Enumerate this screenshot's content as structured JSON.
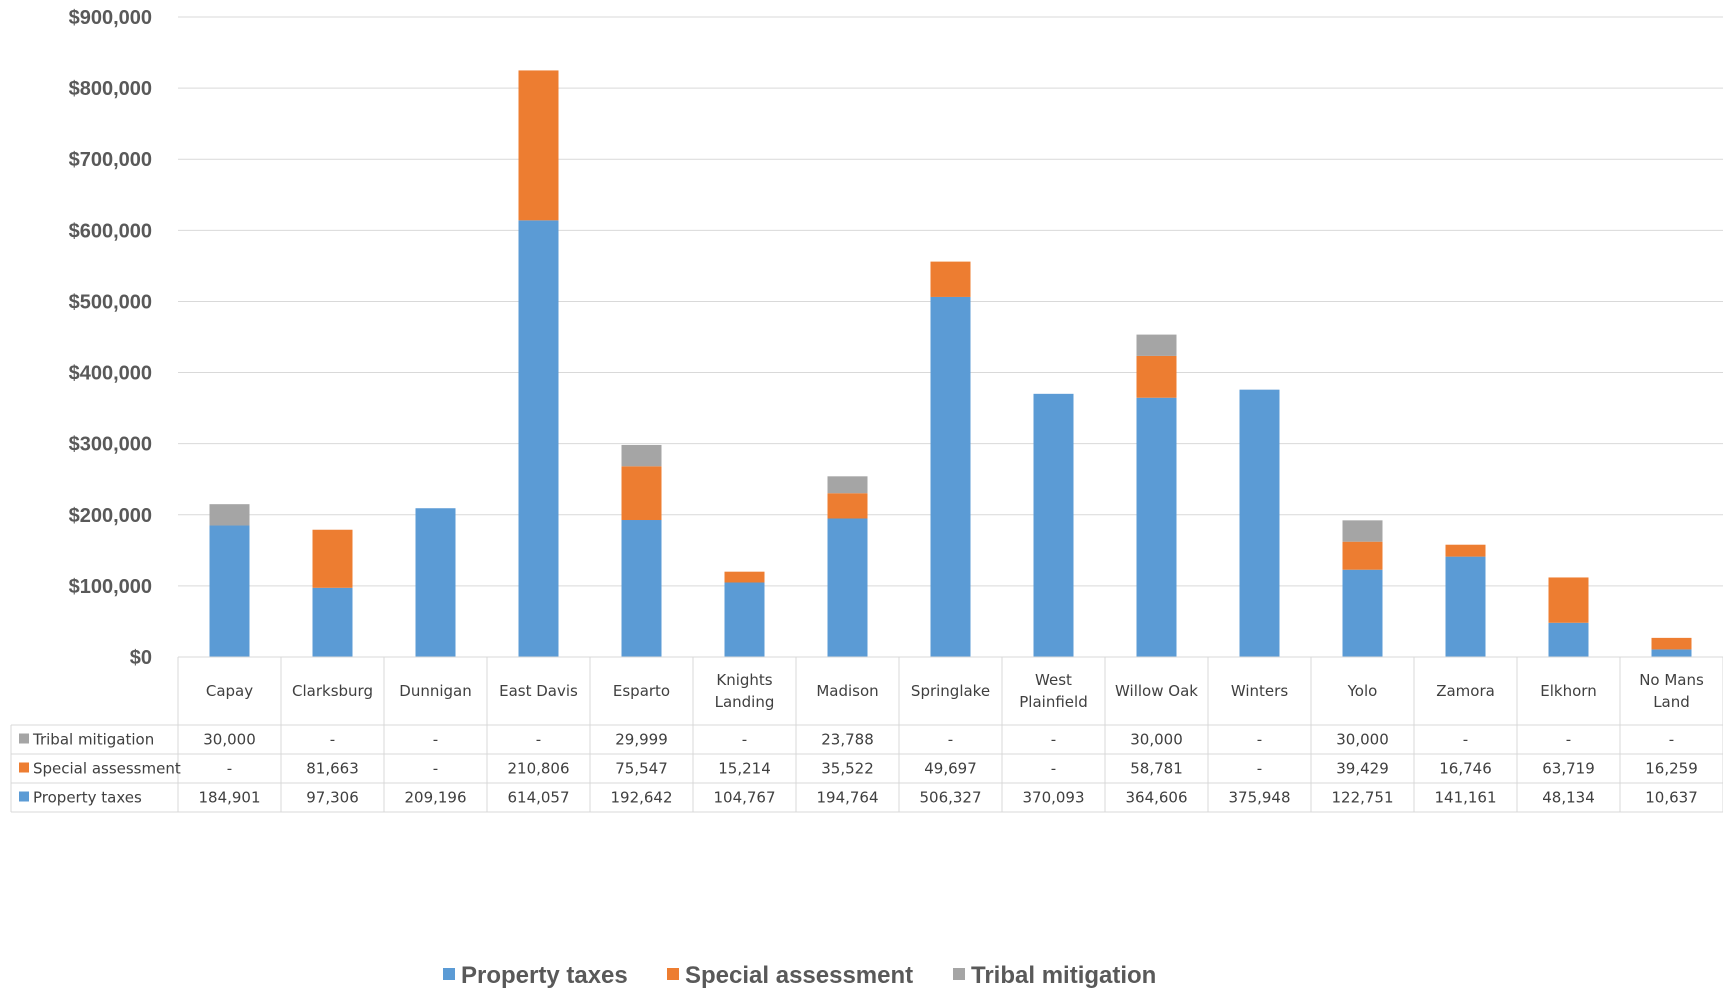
{
  "chart_data": {
    "type": "bar",
    "stacked": true,
    "categories": [
      [
        "Capay"
      ],
      [
        "Clarksburg"
      ],
      [
        "Dunnigan"
      ],
      [
        "East Davis"
      ],
      [
        "Esparto"
      ],
      [
        "Knights",
        "Landing"
      ],
      [
        "Madison"
      ],
      [
        "Springlake"
      ],
      [
        "West",
        "Plainfield"
      ],
      [
        "Willow Oak"
      ],
      [
        "Winters"
      ],
      [
        "Yolo"
      ],
      [
        "Zamora"
      ],
      [
        "Elkhorn"
      ],
      [
        "No Mans",
        "Land"
      ]
    ],
    "series": [
      {
        "name": "Property taxes",
        "color": "#5b9bd5",
        "values": [
          184901,
          97306,
          209196,
          614057,
          192642,
          104767,
          194764,
          506327,
          370093,
          364606,
          375948,
          122751,
          141161,
          48134,
          10637
        ],
        "labels": [
          "184,901",
          "97,306",
          "209,196",
          "614,057",
          "192,642",
          "104,767",
          "194,764",
          "506,327",
          "370,093",
          "364,606",
          "375,948",
          "122,751",
          "141,161",
          "48,134",
          "10,637"
        ]
      },
      {
        "name": "Special assessment",
        "color": "#ed7d31",
        "values": [
          0,
          81663,
          0,
          210806,
          75547,
          15214,
          35522,
          49697,
          0,
          58781,
          0,
          39429,
          16746,
          63719,
          16259
        ],
        "labels": [
          "-",
          "81,663",
          "-",
          "210,806",
          "75,547",
          "15,214",
          "35,522",
          "49,697",
          "-",
          "58,781",
          "-",
          "39,429",
          "16,746",
          "63,719",
          "16,259"
        ]
      },
      {
        "name": "Tribal mitigation",
        "color": "#a5a5a5",
        "values": [
          30000,
          0,
          0,
          0,
          29999,
          0,
          23788,
          0,
          0,
          30000,
          0,
          30000,
          0,
          0,
          0
        ],
        "labels": [
          "30,000",
          "-",
          "-",
          "-",
          "29,999",
          "-",
          "23,788",
          "-",
          "-",
          "30,000",
          "-",
          "30,000",
          "-",
          "-",
          "-"
        ]
      }
    ],
    "ylim": [
      0,
      900000
    ],
    "yticks": [
      0,
      100000,
      200000,
      300000,
      400000,
      500000,
      600000,
      700000,
      800000,
      900000
    ],
    "ytick_labels": [
      "$0",
      "$100,000",
      "$200,000",
      "$300,000",
      "$400,000",
      "$500,000",
      "$600,000",
      "$700,000",
      "$800,000",
      "$900,000"
    ],
    "grid": true,
    "data_table": true,
    "legend_position": "bottom"
  }
}
